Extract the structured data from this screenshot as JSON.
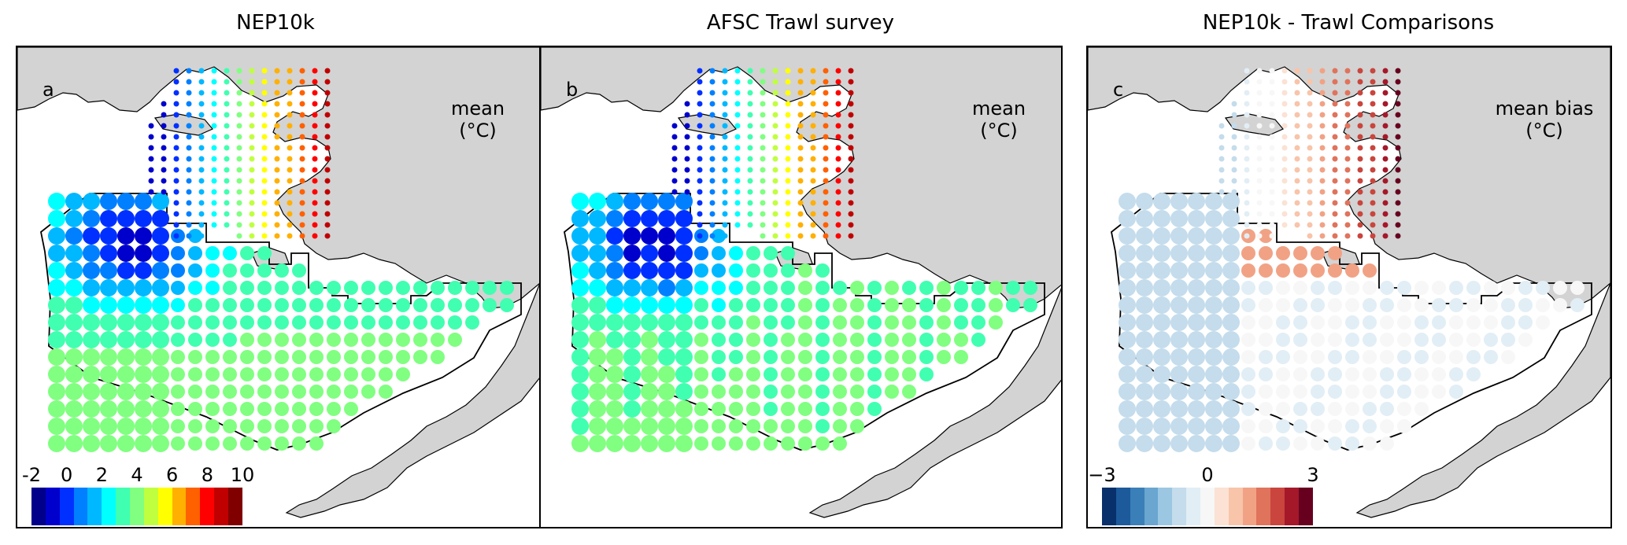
{
  "titles": {
    "left": "NEP10k",
    "middle": "AFSC Trawl survey",
    "right": "NEP10k - Trawl Comparisons"
  },
  "panels": {
    "a": {
      "letter": "a",
      "unit_line1": "mean",
      "unit_line2": "(°C)"
    },
    "b": {
      "letter": "b",
      "unit_line1": "mean",
      "unit_line2": "(°C)"
    },
    "c": {
      "letter": "c",
      "unit_line1": "mean bias",
      "unit_line2": "(°C)"
    }
  },
  "colorbar_temp": {
    "ticks": [
      "-2",
      "0",
      "2",
      "4",
      "6",
      "8",
      "10"
    ],
    "colors": [
      "#00008b",
      "#0000cd",
      "#0030ff",
      "#0080ff",
      "#00b8ff",
      "#00ffff",
      "#40ffb0",
      "#80ff80",
      "#c0ff40",
      "#ffff00",
      "#ffb000",
      "#ff6000",
      "#ff0000",
      "#c00000",
      "#800000"
    ]
  },
  "colorbar_bias": {
    "ticks": [
      "−3",
      "0",
      "3"
    ],
    "colors": [
      "#08306b",
      "#1c5a9c",
      "#3a7fb8",
      "#6aa6d0",
      "#9cc7e2",
      "#c4dcec",
      "#e2eef5",
      "#f7f7f7",
      "#fbe2d4",
      "#f8c4aa",
      "#f1a285",
      "#e0735c",
      "#c9453d",
      "#a5182a",
      "#67001f"
    ]
  },
  "map_colors": {
    "land": "#d3d3d3",
    "coast": "#000000",
    "water": "#ffffff"
  }
}
